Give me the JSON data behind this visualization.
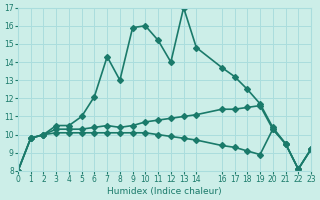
{
  "xlabel": "Humidex (Indice chaleur)",
  "ylabel": "",
  "xlim": [
    0,
    23
  ],
  "ylim": [
    8,
    17
  ],
  "xticks": [
    0,
    1,
    2,
    3,
    4,
    5,
    6,
    7,
    8,
    9,
    10,
    11,
    12,
    13,
    14,
    16,
    17,
    18,
    19,
    20,
    21,
    22,
    23
  ],
  "yticks": [
    8,
    9,
    10,
    11,
    12,
    13,
    14,
    15,
    16,
    17
  ],
  "bg_color": "#cceee8",
  "grid_color": "#aadddd",
  "line_color": "#1a7a6a",
  "line1_x": [
    0,
    1,
    2,
    3,
    4,
    5,
    6,
    7,
    8,
    9,
    10,
    11,
    12,
    13,
    14,
    16,
    17,
    18,
    19,
    20,
    21,
    22,
    23
  ],
  "line1_y": [
    8.0,
    9.8,
    10.0,
    10.5,
    10.5,
    11.0,
    12.1,
    14.3,
    13.0,
    15.9,
    16.0,
    15.2,
    14.0,
    17.0,
    14.8,
    13.7,
    13.2,
    12.5,
    11.7,
    10.4,
    9.5,
    8.1,
    9.2
  ],
  "line2_x": [
    0,
    1,
    2,
    3,
    4,
    5,
    6,
    7,
    8,
    9,
    10,
    11,
    12,
    13,
    14,
    16,
    17,
    18,
    19,
    20,
    21,
    22,
    23
  ],
  "line2_y": [
    8.0,
    9.8,
    10.0,
    10.3,
    10.3,
    10.3,
    10.4,
    10.5,
    10.4,
    10.5,
    10.7,
    10.8,
    10.9,
    11.0,
    11.1,
    11.4,
    11.4,
    11.5,
    11.6,
    10.3,
    9.5,
    8.1,
    9.2
  ],
  "line3_x": [
    0,
    1,
    2,
    3,
    4,
    5,
    6,
    7,
    8,
    9,
    10,
    11,
    12,
    13,
    14,
    16,
    17,
    18,
    19,
    20,
    21,
    22,
    23
  ],
  "line3_y": [
    8.0,
    9.8,
    10.0,
    10.1,
    10.1,
    10.1,
    10.1,
    10.1,
    10.1,
    10.1,
    10.1,
    10.0,
    9.9,
    9.8,
    9.7,
    9.4,
    9.3,
    9.1,
    8.9,
    10.3,
    9.5,
    8.1,
    9.2
  ],
  "marker": "D",
  "markersize": 3,
  "linewidth": 1.2
}
